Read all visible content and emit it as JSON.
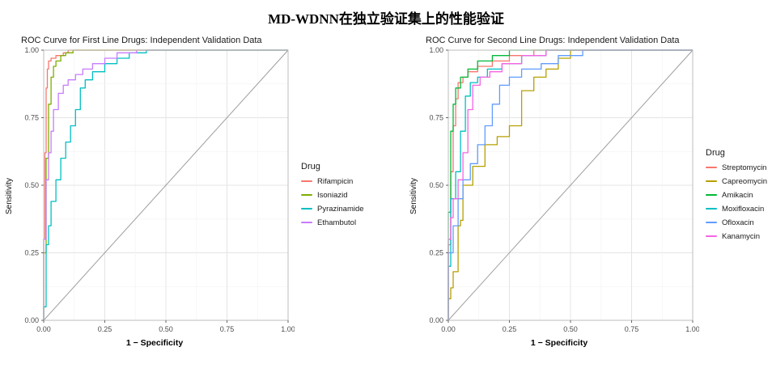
{
  "page": {
    "title": "MD-WDNN在独立验证集上的性能验证"
  },
  "chart_data": [
    {
      "type": "line",
      "title": "ROC Curve for First Line Drugs: Independent Validation Data",
      "xlabel": "1 − Specificity",
      "ylabel": "Sensitivity",
      "legend_title": "Drug",
      "legend_position": "right",
      "xlim": [
        0,
        1
      ],
      "ylim": [
        0,
        1
      ],
      "grid": true,
      "diagonal_reference": true,
      "xticks": [
        "0.00",
        "0.25",
        "0.50",
        "0.75",
        "1.00"
      ],
      "yticks": [
        "0.00",
        "0.25",
        "0.50",
        "0.75",
        "1.00"
      ],
      "series": [
        {
          "name": "Rifampicin",
          "color": "#F8766D",
          "points": [
            [
              0,
              0
            ],
            [
              0.005,
              0.3
            ],
            [
              0.01,
              0.62
            ],
            [
              0.015,
              0.86
            ],
            [
              0.02,
              0.93
            ],
            [
              0.03,
              0.96
            ],
            [
              0.05,
              0.97
            ],
            [
              0.08,
              0.98
            ],
            [
              0.1,
              0.99
            ],
            [
              0.15,
              1.0
            ],
            [
              1,
              1
            ]
          ]
        },
        {
          "name": "Isoniazid",
          "color": "#7CAE00",
          "points": [
            [
              0,
              0
            ],
            [
              0.01,
              0.25
            ],
            [
              0.02,
              0.6
            ],
            [
              0.03,
              0.8
            ],
            [
              0.04,
              0.9
            ],
            [
              0.05,
              0.94
            ],
            [
              0.07,
              0.96
            ],
            [
              0.09,
              0.98
            ],
            [
              0.12,
              0.99
            ],
            [
              0.16,
              1.0
            ],
            [
              1,
              1
            ]
          ]
        },
        {
          "name": "Pyrazinamide",
          "color": "#00BFC4",
          "points": [
            [
              0,
              0
            ],
            [
              0.01,
              0.05
            ],
            [
              0.02,
              0.28
            ],
            [
              0.03,
              0.35
            ],
            [
              0.05,
              0.44
            ],
            [
              0.07,
              0.52
            ],
            [
              0.09,
              0.6
            ],
            [
              0.11,
              0.66
            ],
            [
              0.13,
              0.72
            ],
            [
              0.15,
              0.78
            ],
            [
              0.17,
              0.86
            ],
            [
              0.2,
              0.89
            ],
            [
              0.25,
              0.92
            ],
            [
              0.3,
              0.95
            ],
            [
              0.35,
              0.97
            ],
            [
              0.42,
              0.99
            ],
            [
              0.5,
              1.0
            ],
            [
              1,
              1
            ]
          ]
        },
        {
          "name": "Ethambutol",
          "color": "#C77CFF",
          "points": [
            [
              0,
              0
            ],
            [
              0.01,
              0.3
            ],
            [
              0.02,
              0.52
            ],
            [
              0.03,
              0.62
            ],
            [
              0.04,
              0.7
            ],
            [
              0.06,
              0.78
            ],
            [
              0.08,
              0.84
            ],
            [
              0.1,
              0.87
            ],
            [
              0.13,
              0.89
            ],
            [
              0.16,
              0.91
            ],
            [
              0.2,
              0.93
            ],
            [
              0.25,
              0.95
            ],
            [
              0.3,
              0.97
            ],
            [
              0.38,
              0.99
            ],
            [
              0.45,
              1.0
            ],
            [
              1,
              1
            ]
          ]
        }
      ]
    },
    {
      "type": "line",
      "title": "ROC Curve for Second Line Drugs: Independent Validation Data",
      "xlabel": "1 − Specificity",
      "ylabel": "Sensitivity",
      "legend_title": "Drug",
      "legend_position": "right",
      "xlim": [
        0,
        1
      ],
      "ylim": [
        0,
        1
      ],
      "grid": true,
      "diagonal_reference": true,
      "xticks": [
        "0.00",
        "0.25",
        "0.50",
        "0.75",
        "1.00"
      ],
      "yticks": [
        "0.00",
        "0.25",
        "0.50",
        "0.75",
        "1.00"
      ],
      "series": [
        {
          "name": "Streptomycin",
          "color": "#F8766D",
          "points": [
            [
              0,
              0
            ],
            [
              0.01,
              0.28
            ],
            [
              0.02,
              0.55
            ],
            [
              0.03,
              0.72
            ],
            [
              0.04,
              0.82
            ],
            [
              0.06,
              0.88
            ],
            [
              0.08,
              0.9
            ],
            [
              0.12,
              0.92
            ],
            [
              0.18,
              0.94
            ],
            [
              0.25,
              0.96
            ],
            [
              0.35,
              0.98
            ],
            [
              0.45,
              1.0
            ],
            [
              1,
              1
            ]
          ]
        },
        {
          "name": "Capreomycin",
          "color": "#B79F00",
          "points": [
            [
              0,
              0
            ],
            [
              0.01,
              0.08
            ],
            [
              0.02,
              0.12
            ],
            [
              0.04,
              0.18
            ],
            [
              0.05,
              0.35
            ],
            [
              0.06,
              0.37
            ],
            [
              0.1,
              0.5
            ],
            [
              0.15,
              0.57
            ],
            [
              0.2,
              0.65
            ],
            [
              0.25,
              0.68
            ],
            [
              0.3,
              0.72
            ],
            [
              0.35,
              0.85
            ],
            [
              0.4,
              0.9
            ],
            [
              0.45,
              0.93
            ],
            [
              0.5,
              0.97
            ],
            [
              0.55,
              1.0
            ],
            [
              1,
              1
            ]
          ]
        },
        {
          "name": "Amikacin",
          "color": "#00BA38",
          "points": [
            [
              0,
              0
            ],
            [
              0.01,
              0.4
            ],
            [
              0.02,
              0.7
            ],
            [
              0.03,
              0.8
            ],
            [
              0.05,
              0.86
            ],
            [
              0.08,
              0.9
            ],
            [
              0.12,
              0.93
            ],
            [
              0.18,
              0.96
            ],
            [
              0.25,
              0.98
            ],
            [
              0.35,
              1.0
            ],
            [
              1,
              1
            ]
          ]
        },
        {
          "name": "Moxifloxacin",
          "color": "#00BFC4",
          "points": [
            [
              0,
              0
            ],
            [
              0.01,
              0.2
            ],
            [
              0.03,
              0.45
            ],
            [
              0.05,
              0.55
            ],
            [
              0.07,
              0.7
            ],
            [
              0.09,
              0.83
            ],
            [
              0.12,
              0.88
            ],
            [
              0.16,
              0.9
            ],
            [
              0.22,
              0.93
            ],
            [
              0.3,
              0.95
            ],
            [
              0.4,
              0.98
            ],
            [
              0.5,
              1.0
            ],
            [
              1,
              1
            ]
          ]
        },
        {
          "name": "Ofloxacin",
          "color": "#619CFF",
          "points": [
            [
              0,
              0
            ],
            [
              0.02,
              0.25
            ],
            [
              0.04,
              0.35
            ],
            [
              0.06,
              0.45
            ],
            [
              0.09,
              0.52
            ],
            [
              0.12,
              0.58
            ],
            [
              0.15,
              0.65
            ],
            [
              0.18,
              0.72
            ],
            [
              0.21,
              0.8
            ],
            [
              0.25,
              0.87
            ],
            [
              0.3,
              0.9
            ],
            [
              0.38,
              0.93
            ],
            [
              0.45,
              0.95
            ],
            [
              0.55,
              0.98
            ],
            [
              0.65,
              1.0
            ],
            [
              1,
              1
            ]
          ]
        },
        {
          "name": "Kanamycin",
          "color": "#F564E3",
          "points": [
            [
              0,
              0
            ],
            [
              0.01,
              0.3
            ],
            [
              0.02,
              0.38
            ],
            [
              0.04,
              0.45
            ],
            [
              0.06,
              0.52
            ],
            [
              0.08,
              0.62
            ],
            [
              0.1,
              0.78
            ],
            [
              0.13,
              0.87
            ],
            [
              0.17,
              0.9
            ],
            [
              0.22,
              0.92
            ],
            [
              0.3,
              0.95
            ],
            [
              0.4,
              0.98
            ],
            [
              0.5,
              1.0
            ],
            [
              1,
              1
            ]
          ]
        }
      ]
    }
  ],
  "style": {
    "grid_major_color": "#e4e4e4",
    "grid_minor_color": "#f3f3f3",
    "panel_border_color": "#bdbdbd",
    "diagonal_color": "#9e9e9e",
    "tick_label_color": "#4d4d4d"
  }
}
